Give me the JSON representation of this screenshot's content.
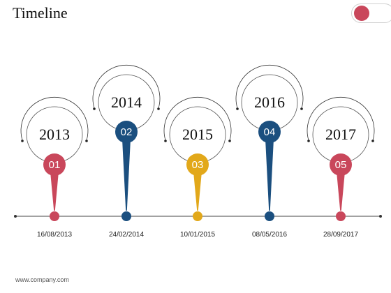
{
  "title": "Timeline",
  "footer": "www.company.com",
  "milestones": [
    {
      "year": "2013",
      "number": "01",
      "date": "16/08/2013",
      "color": "#c9475b"
    },
    {
      "year": "2014",
      "number": "02",
      "date": "24/02/2014",
      "color": "#1b4f7f"
    },
    {
      "year": "2015",
      "number": "03",
      "date": "10/01/2015",
      "color": "#e2a81a"
    },
    {
      "year": "2016",
      "number": "04",
      "date": "08/05/2016",
      "color": "#1b4f7f"
    },
    {
      "year": "2017",
      "number": "05",
      "date": "28/09/2017",
      "color": "#c9475b"
    }
  ]
}
